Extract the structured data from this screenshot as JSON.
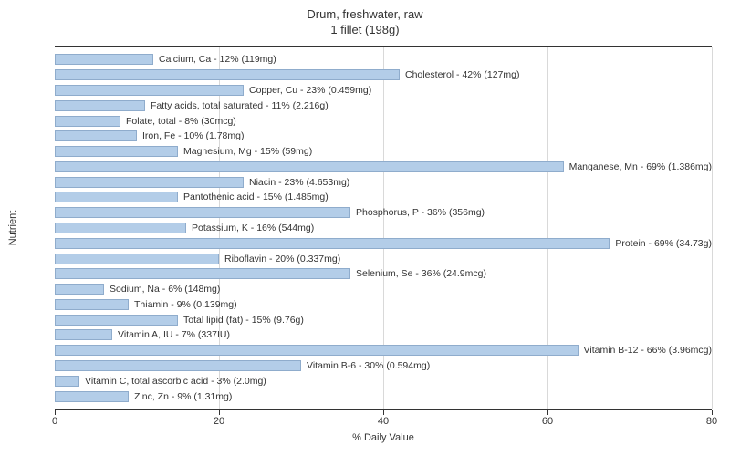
{
  "chart": {
    "type": "horizontal-bar",
    "title_line1": "Drum, freshwater, raw",
    "title_line2": "1 fillet (198g)",
    "title_fontsize": 13,
    "x_axis": {
      "label": "% Daily Value",
      "min": 0,
      "max": 80,
      "ticks": [
        0,
        20,
        40,
        60,
        80
      ],
      "label_fontsize": 11
    },
    "y_axis": {
      "label": "Nutrient",
      "label_fontsize": 11
    },
    "bar_color": "#b3cde8",
    "bar_border_color": "#8faccc",
    "grid_color": "#d9d9d9",
    "background_color": "#ffffff",
    "text_color": "#333333",
    "bars": [
      {
        "label": "Calcium, Ca - 12% (119mg)",
        "value": 12
      },
      {
        "label": "Cholesterol - 42% (127mg)",
        "value": 42
      },
      {
        "label": "Copper, Cu - 23% (0.459mg)",
        "value": 23
      },
      {
        "label": "Fatty acids, total saturated - 11% (2.216g)",
        "value": 11
      },
      {
        "label": "Folate, total - 8% (30mcg)",
        "value": 8
      },
      {
        "label": "Iron, Fe - 10% (1.78mg)",
        "value": 10
      },
      {
        "label": "Magnesium, Mg - 15% (59mg)",
        "value": 15
      },
      {
        "label": "Manganese, Mn - 69% (1.386mg)",
        "value": 69
      },
      {
        "label": "Niacin - 23% (4.653mg)",
        "value": 23
      },
      {
        "label": "Pantothenic acid - 15% (1.485mg)",
        "value": 15
      },
      {
        "label": "Phosphorus, P - 36% (356mg)",
        "value": 36
      },
      {
        "label": "Potassium, K - 16% (544mg)",
        "value": 16
      },
      {
        "label": "Protein - 69% (34.73g)",
        "value": 69
      },
      {
        "label": "Riboflavin - 20% (0.337mg)",
        "value": 20
      },
      {
        "label": "Selenium, Se - 36% (24.9mcg)",
        "value": 36
      },
      {
        "label": "Sodium, Na - 6% (148mg)",
        "value": 6
      },
      {
        "label": "Thiamin - 9% (0.139mg)",
        "value": 9
      },
      {
        "label": "Total lipid (fat) - 15% (9.76g)",
        "value": 15
      },
      {
        "label": "Vitamin A, IU - 7% (337IU)",
        "value": 7
      },
      {
        "label": "Vitamin B-12 - 66% (3.96mcg)",
        "value": 66
      },
      {
        "label": "Vitamin B-6 - 30% (0.594mg)",
        "value": 30
      },
      {
        "label": "Vitamin C, total ascorbic acid - 3% (2.0mg)",
        "value": 3
      },
      {
        "label": "Zinc, Zn - 9% (1.31mg)",
        "value": 9
      }
    ]
  }
}
